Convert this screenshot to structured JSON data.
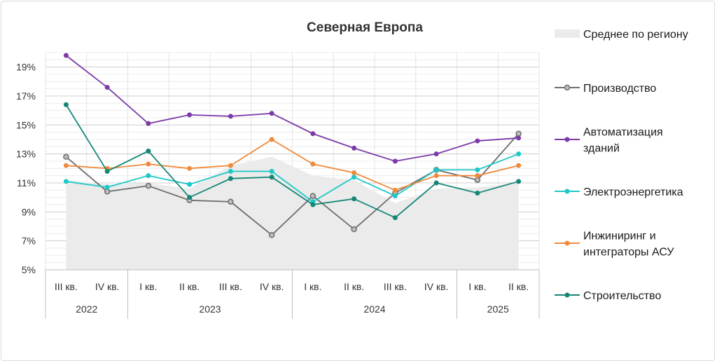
{
  "chart_data": {
    "type": "line",
    "title": "Северная Европа",
    "categories": [
      "III кв.",
      "IV кв.",
      "I кв.",
      "II кв.",
      "III кв.",
      "IV кв.",
      "I кв.",
      "II кв.",
      "III кв.",
      "IV кв.",
      "I кв.",
      "II кв."
    ],
    "years": [
      {
        "label": "2022",
        "span": 2
      },
      {
        "label": "2023",
        "span": 4
      },
      {
        "label": "2024",
        "span": 4
      },
      {
        "label": "2025",
        "span": 2
      }
    ],
    "y_ticks": [
      "5%",
      "7%",
      "9%",
      "11%",
      "13%",
      "15%",
      "17%",
      "19%"
    ],
    "ylim": [
      5,
      20
    ],
    "grid": true,
    "legend_position": "right",
    "area": {
      "name": "Среднее по региону",
      "color": "#ebebeb",
      "values": [
        11.2,
        10.9,
        11.0,
        10.6,
        12.2,
        12.8,
        11.5,
        11.2,
        9.6,
        10.6,
        10.7,
        11.0
      ]
    },
    "series": [
      {
        "name": "Производство",
        "color": "#6e6e6e",
        "hollow": true,
        "values": [
          12.8,
          10.4,
          10.8,
          9.8,
          9.7,
          7.4,
          10.1,
          7.8,
          10.3,
          11.9,
          11.2,
          14.4
        ]
      },
      {
        "name": "Автоматизация зданий",
        "color": "#7c3aa8",
        "hollow": false,
        "values": [
          19.8,
          17.6,
          15.1,
          15.7,
          15.6,
          15.8,
          14.4,
          13.4,
          12.5,
          13.0,
          13.9,
          14.1
        ]
      },
      {
        "name": "Электроэнергетика",
        "color": "#1ec8c8",
        "hollow": false,
        "values": [
          11.1,
          10.7,
          11.5,
          10.9,
          11.8,
          11.8,
          9.7,
          11.4,
          10.1,
          11.9,
          11.9,
          13.0
        ]
      },
      {
        "name": "Инжиниринг и интеграторы АСУ",
        "color": "#ef8a3c",
        "hollow": false,
        "values": [
          12.2,
          12.0,
          12.3,
          12.0,
          12.2,
          14.0,
          12.3,
          11.7,
          10.5,
          11.5,
          11.5,
          12.2
        ]
      },
      {
        "name": "Строительство",
        "color": "#168777",
        "hollow": false,
        "values": [
          16.4,
          11.8,
          13.2,
          10.0,
          11.3,
          11.4,
          9.5,
          9.9,
          8.6,
          11.0,
          10.3,
          11.1
        ]
      }
    ],
    "legend": [
      {
        "key": "area",
        "lines": [
          "Среднее по региону"
        ]
      },
      {
        "key": "0",
        "lines": [
          "Производство"
        ]
      },
      {
        "key": "1",
        "lines": [
          "Автоматизация",
          "зданий"
        ]
      },
      {
        "key": "2",
        "lines": [
          "Электроэнергетика"
        ]
      },
      {
        "key": "3",
        "lines": [
          "Инжиниринг и",
          "интеграторы АСУ"
        ]
      },
      {
        "key": "4",
        "lines": [
          "Строительство"
        ]
      }
    ]
  }
}
